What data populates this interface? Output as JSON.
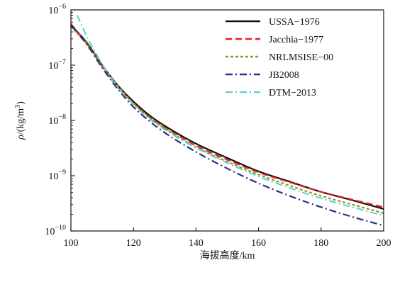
{
  "chart_data": {
    "type": "line",
    "title": "",
    "xlabel": "海拔高度/km",
    "ylabel": "ρ/(kg/m³)",
    "ylabel_parts": {
      "sym": "ρ",
      "pre": "/(kg/m",
      "sup": "3",
      "post": ")"
    },
    "x_scale": "linear",
    "y_scale": "log",
    "xlim": [
      100,
      200
    ],
    "ylim": [
      1e-10,
      1e-06
    ],
    "grid": false,
    "legend_position": "top-right",
    "x_ticks": [
      100,
      120,
      140,
      160,
      180,
      200
    ],
    "x_tick_labels": [
      "100",
      "120",
      "140",
      "160",
      "180",
      "200"
    ],
    "y_ticks": [
      {
        "value": 1e-10,
        "base": "10",
        "exp": "−10"
      },
      {
        "value": 1e-09,
        "base": "10",
        "exp": "−9"
      },
      {
        "value": 1e-08,
        "base": "10",
        "exp": "−8"
      },
      {
        "value": 1e-07,
        "base": "10",
        "exp": "−7"
      },
      {
        "value": 1e-06,
        "base": "10",
        "exp": "−6"
      }
    ],
    "series": [
      {
        "name": "USSA−1976",
        "color": "#111111",
        "dash": "",
        "width": 2.2,
        "x": [
          100,
          105,
          110,
          115,
          120,
          125,
          130,
          140,
          150,
          160,
          170,
          180,
          190,
          200
        ],
        "y": [
          5.3e-07,
          2.6e-07,
          1e-07,
          4.3e-08,
          2.2e-08,
          1.25e-08,
          8e-09,
          3.8e-09,
          2.1e-09,
          1.2e-09,
          7.8e-10,
          5.1e-10,
          3.6e-10,
          2.5e-10
        ]
      },
      {
        "name": "Jacchia−1977",
        "color": "#e8202a",
        "dash": "9,5",
        "width": 2.2,
        "x": [
          100,
          105,
          110,
          115,
          120,
          125,
          130,
          140,
          150,
          160,
          170,
          180,
          190,
          200
        ],
        "y": [
          5.6e-07,
          2.5e-07,
          9.5e-08,
          4e-08,
          2.05e-08,
          1.15e-08,
          7.4e-09,
          3.5e-09,
          1.95e-09,
          1.15e-09,
          7.6e-10,
          5.1e-10,
          3.7e-10,
          2.7e-10
        ]
      },
      {
        "name": "NRLMSISE−00",
        "color": "#8a9a18",
        "dash": "4,3",
        "width": 2.2,
        "x": [
          100,
          105,
          110,
          115,
          120,
          125,
          130,
          140,
          150,
          160,
          170,
          180,
          190,
          200
        ],
        "y": [
          5e-07,
          2.45e-07,
          1e-07,
          4.2e-08,
          2.05e-08,
          1.15e-08,
          7.2e-09,
          3.3e-09,
          1.8e-09,
          1.05e-09,
          6.6e-10,
          4.3e-10,
          3e-10,
          2.1e-10
        ]
      },
      {
        "name": "JB2008",
        "color": "#2a2f8a",
        "dash": "10,4,2,4",
        "width": 2.2,
        "x": [
          100,
          105,
          110,
          115,
          120,
          125,
          130,
          140,
          150,
          160,
          170,
          180,
          190,
          200
        ],
        "y": [
          5.3e-07,
          2.4e-07,
          9e-08,
          3.7e-08,
          1.75e-08,
          9.8e-09,
          6e-09,
          2.7e-09,
          1.35e-09,
          7.3e-10,
          4.3e-10,
          2.7e-10,
          1.8e-10,
          1.25e-10
        ]
      },
      {
        "name": "DTM−2013",
        "color": "#5fcfcf",
        "dash": "10,4,2,4",
        "width": 2.0,
        "x": [
          102,
          105,
          110,
          115,
          120,
          125,
          130,
          140,
          150,
          160,
          170,
          180,
          190,
          200
        ],
        "y": [
          8e-07,
          3.4e-07,
          1.05e-07,
          4e-08,
          1.95e-08,
          1.08e-08,
          6.8e-09,
          3.2e-09,
          1.7e-09,
          9.7e-10,
          6e-10,
          3.9e-10,
          2.7e-10,
          1.9e-10
        ]
      }
    ]
  }
}
